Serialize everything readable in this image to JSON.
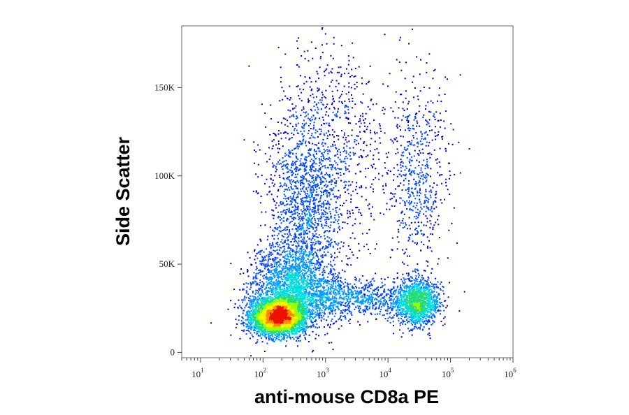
{
  "chart_data": {
    "type": "scatter",
    "style": "density-colored flow cytometry dot plot",
    "xlabel": "anti-mouse CD8a PE",
    "ylabel": "Side Scatter",
    "x_scale": "log",
    "xlim": [
      5,
      1000000
    ],
    "ylim": [
      -3000,
      185000
    ],
    "x_ticks": [
      {
        "value": 10,
        "base": "10",
        "exp": "1"
      },
      {
        "value": 100,
        "base": "10",
        "exp": "2"
      },
      {
        "value": 1000,
        "base": "10",
        "exp": "3"
      },
      {
        "value": 10000,
        "base": "10",
        "exp": "4"
      },
      {
        "value": 100000,
        "base": "10",
        "exp": "5"
      },
      {
        "value": 1000000,
        "base": "10",
        "exp": "6"
      }
    ],
    "y_ticks": [
      {
        "value": 0,
        "label": "0"
      },
      {
        "value": 50000,
        "label": "50K"
      },
      {
        "value": 100000,
        "label": "100K"
      },
      {
        "value": 150000,
        "label": "150K"
      }
    ],
    "populations": [
      {
        "x": 170,
        "y": 21000,
        "weight": 0.34
      },
      {
        "x": 260,
        "y": 38000,
        "weight": 0.14
      },
      {
        "x": 450,
        "y": 80000,
        "weight": 0.14
      },
      {
        "x": 1500,
        "y": 115000,
        "weight": 0.06
      },
      {
        "x": 2500,
        "y": 31000,
        "weight": 0.08
      },
      {
        "x": 28000,
        "y": 29000,
        "weight": 0.12
      },
      {
        "x": 30000,
        "y": 100000,
        "weight": 0.05
      }
    ],
    "density_colors": [
      "#0000cc",
      "#0044ff",
      "#0099ff",
      "#00dddd",
      "#22dd77",
      "#99ff00",
      "#ffee00",
      "#ff8800",
      "#ee1100"
    ],
    "grid": false,
    "legend": "none"
  }
}
